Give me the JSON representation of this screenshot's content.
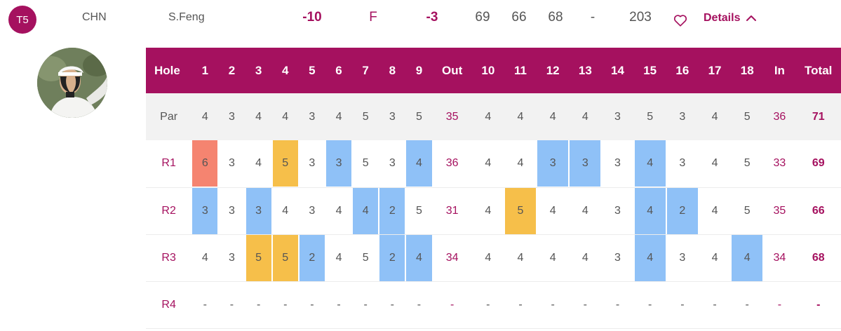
{
  "player": {
    "position": "T5",
    "country": "CHN",
    "name": "S.Feng",
    "to_par": "-10",
    "thru": "F",
    "today": "-3",
    "r1": "69",
    "r2": "66",
    "r3": "68",
    "r4": "-",
    "total": "203",
    "favorite_icon": "heart-icon",
    "details_label": "Details",
    "details_icon": "chevron-up-icon"
  },
  "scorecard": {
    "columns": [
      "Hole",
      "1",
      "2",
      "3",
      "4",
      "5",
      "6",
      "7",
      "8",
      "9",
      "Out",
      "10",
      "11",
      "12",
      "13",
      "14",
      "15",
      "16",
      "17",
      "18",
      "In",
      "Total"
    ],
    "rows": [
      {
        "label": "Par",
        "type": "par",
        "cells": [
          "4",
          "3",
          "4",
          "4",
          "3",
          "4",
          "5",
          "3",
          "5",
          "35",
          "4",
          "4",
          "4",
          "4",
          "3",
          "5",
          "3",
          "4",
          "5",
          "36",
          "71"
        ],
        "marks": [
          "",
          "",
          "",
          "",
          "",
          "",
          "",
          "",
          "",
          "",
          "",
          "",
          "",
          "",
          "",
          "",
          "",
          "",
          "",
          "",
          ""
        ]
      },
      {
        "label": "R1",
        "type": "round",
        "cells": [
          "6",
          "3",
          "4",
          "5",
          "3",
          "3",
          "5",
          "3",
          "4",
          "36",
          "4",
          "4",
          "3",
          "3",
          "3",
          "4",
          "3",
          "4",
          "5",
          "33",
          "69"
        ],
        "marks": [
          "double",
          "",
          "",
          "bogey",
          "",
          "birdie",
          "",
          "",
          "birdie",
          "",
          "",
          "",
          "birdie",
          "birdie",
          "",
          "birdie",
          "",
          "",
          "",
          "",
          ""
        ]
      },
      {
        "label": "R2",
        "type": "round",
        "cells": [
          "3",
          "3",
          "3",
          "4",
          "3",
          "4",
          "4",
          "2",
          "5",
          "31",
          "4",
          "5",
          "4",
          "4",
          "3",
          "4",
          "2",
          "4",
          "5",
          "35",
          "66"
        ],
        "marks": [
          "birdie",
          "",
          "birdie",
          "",
          "",
          "",
          "birdie",
          "birdie",
          "",
          "",
          "",
          "bogey",
          "",
          "",
          "",
          "birdie",
          "birdie",
          "",
          "",
          "",
          ""
        ]
      },
      {
        "label": "R3",
        "type": "round",
        "cells": [
          "4",
          "3",
          "5",
          "5",
          "2",
          "4",
          "5",
          "2",
          "4",
          "34",
          "4",
          "4",
          "4",
          "4",
          "3",
          "4",
          "3",
          "4",
          "4",
          "34",
          "68"
        ],
        "marks": [
          "",
          "",
          "bogey",
          "bogey",
          "birdie",
          "",
          "",
          "birdie",
          "birdie",
          "",
          "",
          "",
          "",
          "",
          "",
          "birdie",
          "",
          "",
          "birdie",
          "",
          ""
        ]
      },
      {
        "label": "R4",
        "type": "round",
        "cells": [
          "-",
          "-",
          "-",
          "-",
          "-",
          "-",
          "-",
          "-",
          "-",
          "-",
          "-",
          "-",
          "-",
          "-",
          "-",
          "-",
          "-",
          "-",
          "-",
          "-",
          "-"
        ],
        "marks": [
          "",
          "",
          "",
          "",
          "",
          "",
          "",
          "",
          "",
          "",
          "",
          "",
          "",
          "",
          "",
          "",
          "",
          "",
          "",
          "",
          ""
        ]
      }
    ]
  },
  "colors": {
    "accent": "#a5115f",
    "birdie": "#8fc1f7",
    "bogey": "#f6bf4a",
    "double_bogey": "#f58470"
  }
}
